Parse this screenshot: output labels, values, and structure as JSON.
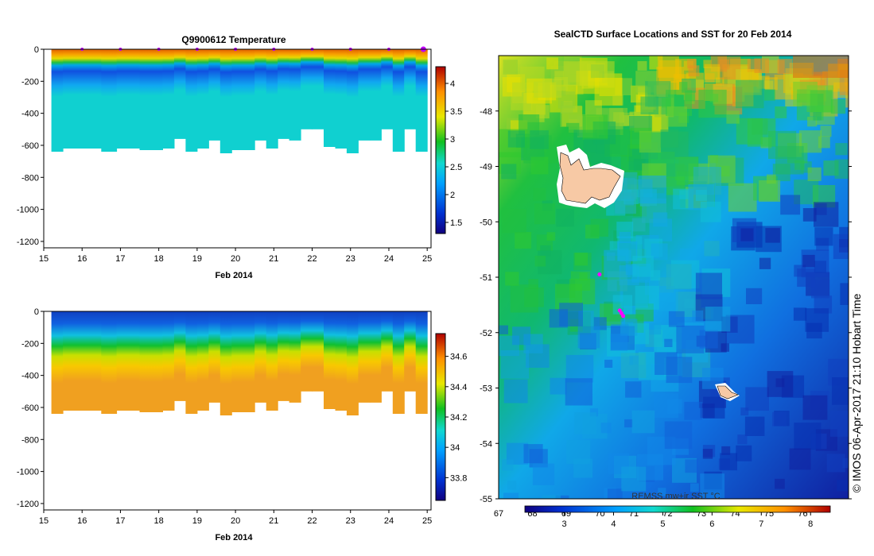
{
  "colors": {
    "land": "#f7c9a5",
    "track": "#ff00ff",
    "frame": "#000000"
  },
  "chart_data": [
    {
      "type": "heatmap",
      "title": "Q9900612  Temperature",
      "xlabel": "Feb 2014",
      "x_ticks": [
        "15",
        "16",
        "17",
        "18",
        "19",
        "20",
        "21",
        "22",
        "23",
        "24",
        "25"
      ],
      "xlim": [
        15,
        25.1
      ],
      "y_ticks": [
        "0",
        "-200",
        "-400",
        "-600",
        "-800",
        "-1000",
        "-1200"
      ],
      "ylim": [
        -1240,
        0
      ],
      "colorbar_ticks": [
        "1.5",
        "2",
        "2.5",
        "3",
        "3.5",
        "4"
      ],
      "colorbar_range": [
        1.3,
        4.3
      ],
      "profile_times": [
        15.3,
        15.6,
        16.0,
        16.3,
        16.6,
        17.0,
        17.3,
        17.6,
        17.9,
        18.2,
        18.5,
        18.8,
        19.1,
        19.4,
        19.7,
        20.0,
        20.3,
        20.6,
        20.9,
        21.2,
        21.5,
        21.8,
        22.1,
        22.4,
        22.7,
        23.0,
        23.3,
        23.6,
        23.9,
        24.2,
        24.5,
        24.8
      ],
      "profile_max_depth": [
        -640,
        -620,
        -620,
        -620,
        -640,
        -620,
        -620,
        -630,
        -630,
        -620,
        -560,
        -640,
        -620,
        -570,
        -650,
        -630,
        -630,
        -570,
        -620,
        -560,
        -570,
        -500,
        -500,
        -610,
        -620,
        -650,
        -570,
        -570,
        -500,
        -640,
        -500,
        -640
      ],
      "surface_markers": [
        16.0,
        17.0,
        18.0,
        19.0,
        20.0,
        21.0,
        22.0,
        23.0,
        24.0,
        24.9
      ]
    },
    {
      "type": "heatmap",
      "title": "",
      "xlabel": "Feb 2014",
      "x_ticks": [
        "15",
        "16",
        "17",
        "18",
        "19",
        "20",
        "21",
        "22",
        "23",
        "24",
        "25"
      ],
      "xlim": [
        15,
        25.1
      ],
      "y_ticks": [
        "0",
        "-200",
        "-400",
        "-600",
        "-800",
        "-1000",
        "-1200"
      ],
      "ylim": [
        -1240,
        0
      ],
      "colorbar_ticks": [
        "33.8",
        "34",
        "34.2",
        "34.4",
        "34.6"
      ],
      "colorbar_range": [
        33.65,
        34.75
      ]
    },
    {
      "type": "heatmap",
      "title": "SealCTD Surface Locations and SST for 20 Feb 2014",
      "y_ticks": [
        "-48",
        "-49",
        "-50",
        "-51",
        "-52",
        "-53",
        "-54",
        "-55"
      ],
      "ylim": [
        -55,
        -47.0
      ],
      "x_ticks": [
        "67",
        "68",
        "69",
        "70",
        "71",
        "72",
        "73",
        "74",
        "75",
        "76"
      ],
      "colorbar_ticks": [
        "3",
        "4",
        "5",
        "6",
        "7",
        "8"
      ],
      "colorbar_range": [
        2.2,
        8.4
      ],
      "colorbar_label": "REMSS mw+ir SST °C",
      "track_points": [
        [
          -50.95,
          69.6
        ],
        [
          -51.6,
          70.2
        ],
        [
          -51.65,
          70.25
        ],
        [
          -51.7,
          70.3
        ]
      ]
    }
  ],
  "credit": "© IMOS 06-Apr-2017 21:10 Hobart Time"
}
